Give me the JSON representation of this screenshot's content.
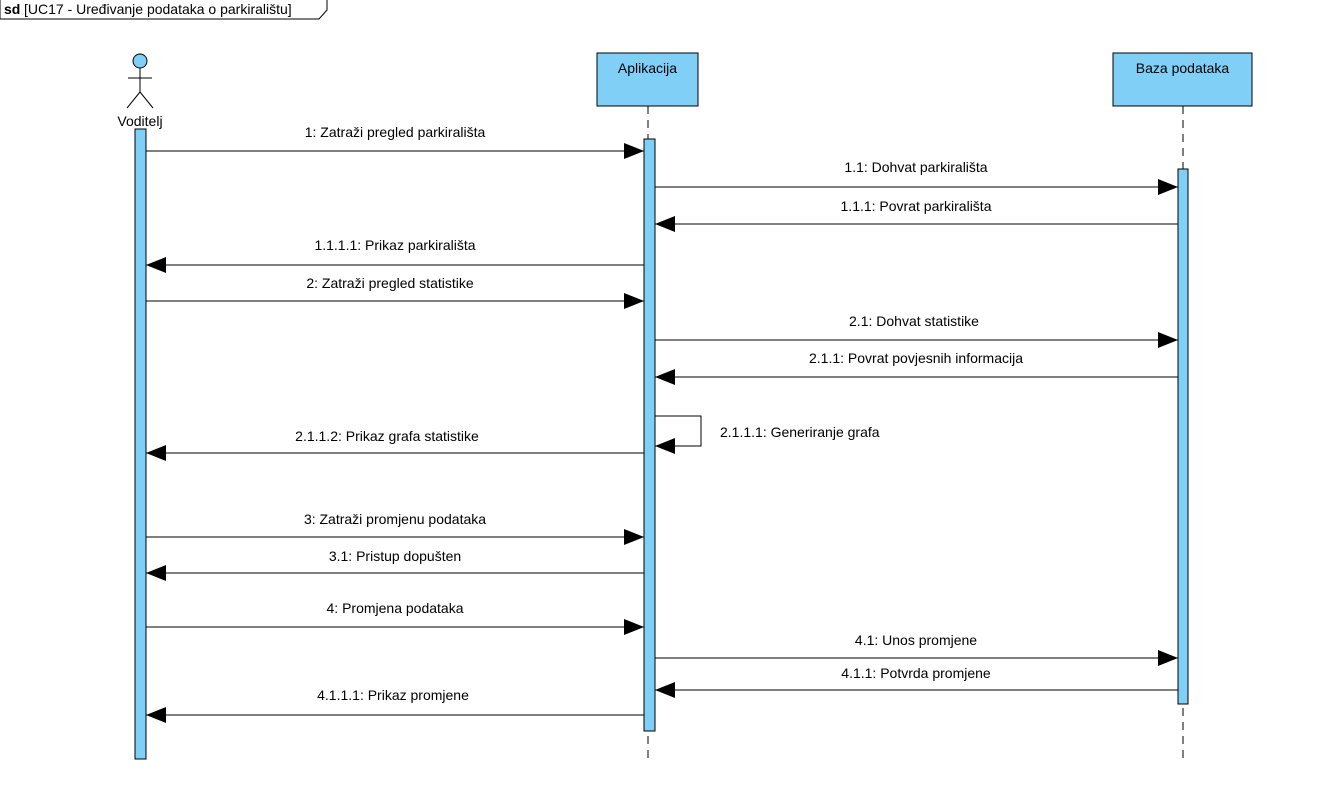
{
  "frame": {
    "keyword": "sd",
    "title": "[UC17 - Uređivanje podataka o parkiralištu]"
  },
  "colors": {
    "lifeline_fill": "#7fcff7",
    "stroke": "#000000",
    "background": "#ffffff"
  },
  "actor": {
    "name": "Voditelj"
  },
  "participants": [
    {
      "name": "Aplikacija"
    },
    {
      "name": "Baza podataka"
    }
  ],
  "messages": [
    {
      "label": "1: Zatraži pregled parkirališta",
      "from": "actor",
      "to": "app",
      "type": "call"
    },
    {
      "label": "1.1: Dohvat parkirališta",
      "from": "app",
      "to": "db",
      "type": "call"
    },
    {
      "label": "1.1.1: Povrat parkirališta",
      "from": "db",
      "to": "app",
      "type": "return"
    },
    {
      "label": "1.1.1.1: Prikaz parkirališta",
      "from": "app",
      "to": "actor",
      "type": "return"
    },
    {
      "label": "2: Zatraži pregled statistike",
      "from": "actor",
      "to": "app",
      "type": "call"
    },
    {
      "label": "2.1: Dohvat statistike",
      "from": "app",
      "to": "db",
      "type": "call"
    },
    {
      "label": "2.1.1: Povrat povjesnih informacija",
      "from": "db",
      "to": "app",
      "type": "return"
    },
    {
      "label": "2.1.1.1: Generiranje grafa",
      "from": "app",
      "to": "app",
      "type": "self"
    },
    {
      "label": "2.1.1.2: Prikaz grafa statistike",
      "from": "app",
      "to": "actor",
      "type": "return"
    },
    {
      "label": "3: Zatraži promjenu podataka",
      "from": "actor",
      "to": "app",
      "type": "call"
    },
    {
      "label": "3.1: Pristup dopušten",
      "from": "app",
      "to": "actor",
      "type": "return"
    },
    {
      "label": "4: Promjena podataka",
      "from": "actor",
      "to": "app",
      "type": "call"
    },
    {
      "label": "4.1: Unos promjene",
      "from": "app",
      "to": "db",
      "type": "call"
    },
    {
      "label": "4.1.1: Potvrda promjene",
      "from": "db",
      "to": "app",
      "type": "return"
    },
    {
      "label": "4.1.1.1: Prikaz promjene",
      "from": "app",
      "to": "actor",
      "type": "return"
    }
  ]
}
